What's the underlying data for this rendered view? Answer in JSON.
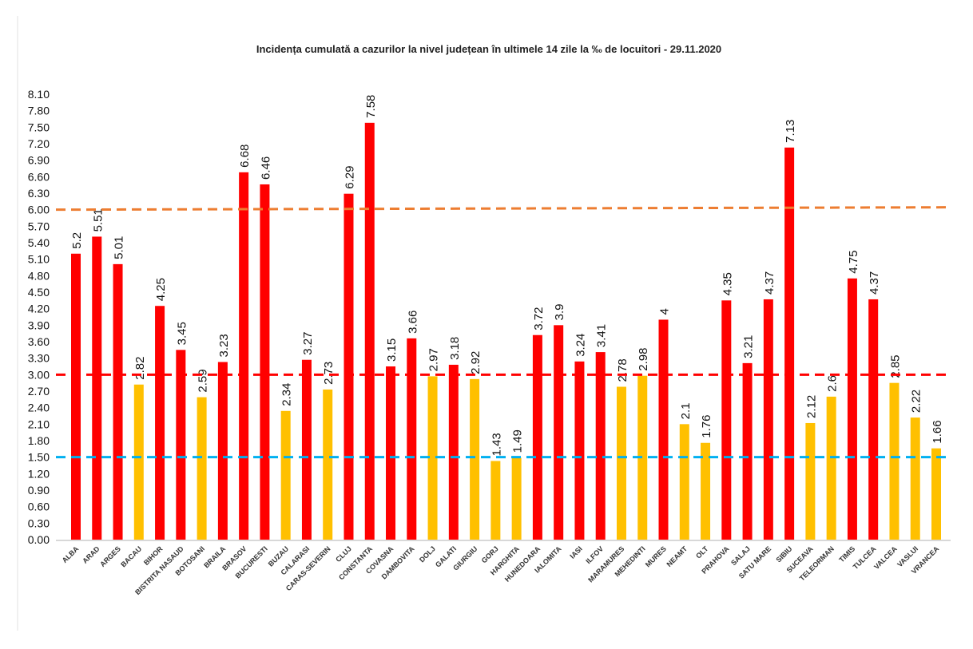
{
  "chart_data": {
    "type": "bar",
    "title": "Incidența cumulată a cazurilor la nivel județean în ultimele 14 zile la ‰ de locuitori - 29.11.2020",
    "xlabel": "",
    "ylabel": "",
    "ylim": [
      0,
      8.1
    ],
    "yticks": [
      "0.00",
      "0.30",
      "0.60",
      "0.90",
      "1.20",
      "1.50",
      "1.80",
      "2.10",
      "2.40",
      "2.70",
      "3.00",
      "3.30",
      "3.60",
      "3.90",
      "4.20",
      "4.50",
      "4.80",
      "5.10",
      "5.40",
      "5.70",
      "6.00",
      "6.30",
      "6.60",
      "6.90",
      "7.20",
      "7.50",
      "7.80",
      "8.10"
    ],
    "grid": false,
    "categories": [
      "ALBA",
      "ARAD",
      "ARGES",
      "BACAU",
      "BIHOR",
      "BISTRITA NASAUD",
      "BOTOSANI",
      "BRAILA",
      "BRASOV",
      "BUCURESTI",
      "BUZAU",
      "CALARASI",
      "CARAS-SEVERIN",
      "CLUJ",
      "CONSTANTA",
      "COVASNA",
      "DAMBOVITA",
      "DOLJ",
      "GALATI",
      "GIURGIU",
      "GORJ",
      "HARGHITA",
      "HUNEDOARA",
      "IALOMITA",
      "IASI",
      "ILFOV",
      "MARAMURES",
      "MEHEDINTI",
      "MURES",
      "NEAMT",
      "OLT",
      "PRAHOVA",
      "SALAJ",
      "SATU MARE",
      "SIBIU",
      "SUCEAVA",
      "TELEORMAN",
      "TIMIS",
      "TULCEA",
      "VALCEA",
      "VASLUI",
      "VRANCEA"
    ],
    "values": [
      5.2,
      5.51,
      5.01,
      2.82,
      4.25,
      3.45,
      2.59,
      3.23,
      6.68,
      6.46,
      2.34,
      3.27,
      2.73,
      6.29,
      7.58,
      3.15,
      3.66,
      2.97,
      3.18,
      2.92,
      1.43,
      1.49,
      3.72,
      3.9,
      3.24,
      3.41,
      2.78,
      2.98,
      4,
      2.1,
      1.76,
      4.35,
      3.21,
      4.37,
      7.13,
      2.12,
      2.6,
      4.75,
      4.37,
      2.85,
      2.22,
      1.66
    ],
    "data_labels": [
      "5.2",
      "5.51",
      "5.01",
      "2.82",
      "4.25",
      "3.45",
      "2.59",
      "3.23",
      "6.68",
      "6.46",
      "2.34",
      "3.27",
      "2.73",
      "6.29",
      "7.58",
      "3.15",
      "3.66",
      "2.97",
      "3.18",
      "2.92",
      "1.43",
      "1.49",
      "3.72",
      "3.9",
      "3.24",
      "3.41",
      "2.78",
      "2.98",
      "4",
      "2.1",
      "1.76",
      "4.35",
      "3.21",
      "4.37",
      "7.13",
      "2.12",
      "2.6",
      "4.75",
      "4.37",
      "2.85",
      "2.22",
      "1.66"
    ],
    "thresholds": [
      {
        "value": 6.0,
        "color": "#ED7D31",
        "style": "dashed"
      },
      {
        "value": 3.0,
        "color": "#FF0000",
        "style": "dashed"
      },
      {
        "value": 1.5,
        "color": "#00B0F0",
        "style": "dashed"
      }
    ],
    "colors": {
      "above_3": "#FF0000",
      "below_3": "#FFC000"
    }
  }
}
